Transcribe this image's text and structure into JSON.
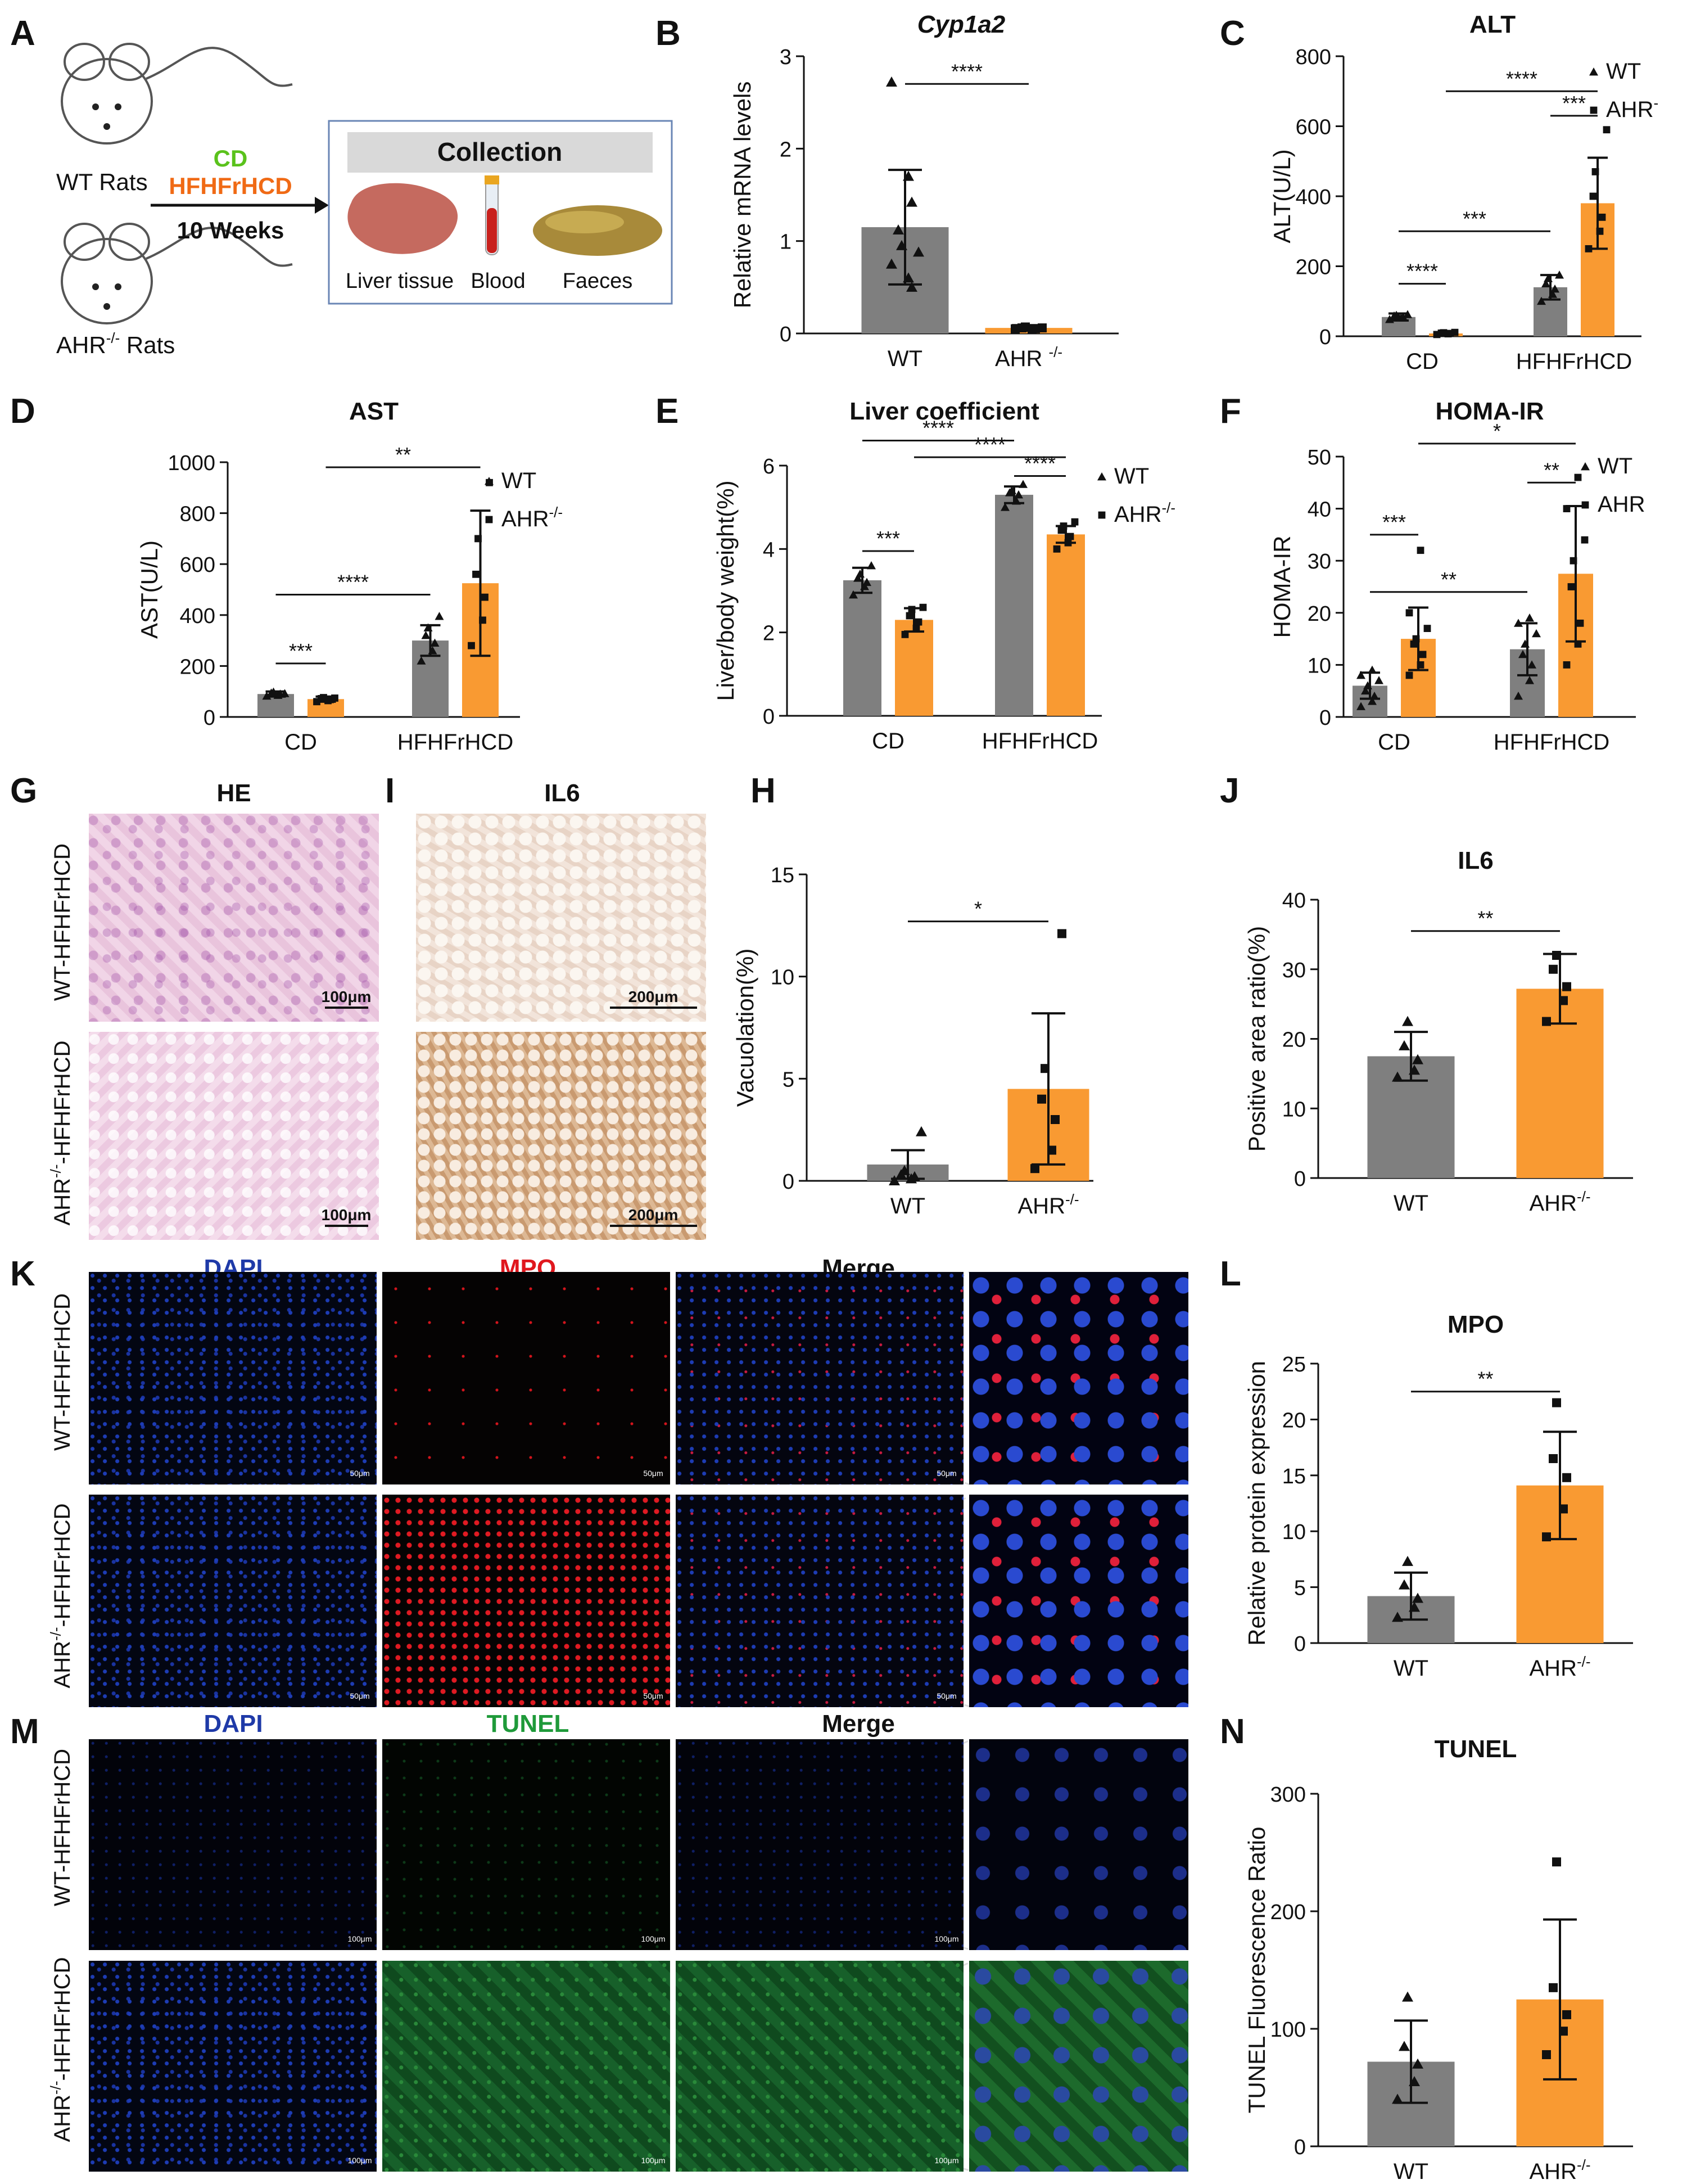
{
  "colors": {
    "wt": "#7f7f7f",
    "ahr": "#f99a32",
    "cd": "#5ac21c",
    "hfhfrhcd": "#f06a15"
  },
  "panel_letters": {
    "A": "A",
    "B": "B",
    "C": "C",
    "D": "D",
    "E": "E",
    "F": "F",
    "G": "G",
    "H": "H",
    "I": "I",
    "J": "J",
    "K": "K",
    "L": "L",
    "M": "M",
    "N": "N"
  },
  "panel_a": {
    "wt_rats": "WT Rats",
    "ahr_rats_base": "AHR",
    "ahr_rats_sup": "-/-",
    "ahr_rats_tail": " Rats",
    "diet_cd": "CD",
    "diet_hf": "HFHFrHCD",
    "duration": "10 Weeks",
    "collection_title": "Collection",
    "liver": "Liver tissue",
    "blood": "Blood",
    "faeces": "Faeces",
    "icons": [
      "rat-icon",
      "liver-icon",
      "blood-tube-icon",
      "faeces-icon"
    ]
  },
  "panel_g": {
    "title": "HE",
    "scale": "100μm",
    "row1": "WT-HFHFrHCD",
    "row2_base": "AHR",
    "row2_sup": "-/-",
    "row2_tail": "-HFHFrHCD"
  },
  "panel_i": {
    "title": "IL6",
    "scale": "200μm"
  },
  "panel_k": {
    "dapi": "DAPI",
    "mpo": "MPO",
    "merge": "Merge",
    "scale": "50μm",
    "row1": "WT-HFHFrHCD",
    "row2_base": "AHR",
    "row2_sup": "-/-",
    "row2_tail": "-HFHFrHCD"
  },
  "panel_m": {
    "dapi": "DAPI",
    "tunel": "TUNEL",
    "merge": "Merge",
    "scale": "100μm",
    "row1": "WT-HFHFrHCD",
    "row2_base": "AHR",
    "row2_sup": "-/-",
    "row2_tail": "-HFHFrHCD"
  },
  "chart_data": [
    {
      "panel": "B",
      "type": "bar",
      "title": "Cyp1a2",
      "title_italic": true,
      "ylabel": "Relative mRNA levels",
      "ylim": [
        0,
        3
      ],
      "yticks": [
        "0",
        "1",
        "2",
        "3"
      ],
      "categories": [
        {
          "base": "WT",
          "sup": ""
        },
        {
          "base": "AHR ",
          "sup": "-/-"
        }
      ],
      "values": [
        1.15,
        0.06
      ],
      "errors": [
        0.62,
        0.03
      ],
      "points": [
        [
          2.72,
          1.7,
          1.42,
          1.12,
          0.95,
          0.88,
          0.75,
          0.6,
          0.5
        ],
        [
          0.04,
          0.05,
          0.05,
          0.06,
          0.07,
          0.06,
          0.05,
          0.04
        ]
      ],
      "markers": [
        "triangle",
        "square"
      ],
      "significance": [
        {
          "from": 0,
          "to": 1,
          "y": 2.7,
          "label": "****"
        }
      ]
    },
    {
      "panel": "C",
      "type": "bar",
      "title": "ALT",
      "ylabel": "ALT(U/L)",
      "ylim": [
        0,
        800
      ],
      "yticks": [
        "0",
        "200",
        "400",
        "600",
        "800"
      ],
      "groups": [
        "CD",
        "HFHFrHCD"
      ],
      "series": [
        {
          "name_base": "WT",
          "name_sup": "",
          "values": [
            55,
            140
          ],
          "errors": [
            10,
            35
          ],
          "points": [
            [
              48,
              52,
              55,
              58,
              60,
              62
            ],
            [
              100,
              120,
              135,
              150,
              165,
              175
            ]
          ]
        },
        {
          "name_base": "AHR",
          "name_sup": "-",
          "values": [
            8,
            380
          ],
          "errors": [
            4,
            130
          ],
          "points": [
            [
              5,
              7,
              8,
              9,
              10,
              11
            ],
            [
              250,
              300,
              340,
              400,
              470,
              590
            ]
          ]
        }
      ],
      "markers": [
        "triangle",
        "square"
      ],
      "significance": [
        {
          "a": [
            0,
            0
          ],
          "b": [
            0,
            1
          ],
          "y": 150,
          "label": "****"
        },
        {
          "a": [
            0,
            0
          ],
          "b": [
            1,
            0
          ],
          "y": 300,
          "label": "***"
        },
        {
          "a": [
            1,
            0
          ],
          "b": [
            1,
            1
          ],
          "y": 630,
          "label": "***"
        },
        {
          "a": [
            0,
            1
          ],
          "b": [
            1,
            1
          ],
          "y": 700,
          "label": "****"
        }
      ]
    },
    {
      "panel": "D",
      "type": "bar",
      "title": "AST",
      "ylabel": "AST(U/L)",
      "ylim": [
        0,
        1000
      ],
      "yticks": [
        "0",
        "200",
        "400",
        "600",
        "800",
        "1000"
      ],
      "groups": [
        "CD",
        "HFHFrHCD"
      ],
      "series": [
        {
          "name_base": "WT",
          "name_sup": "",
          "values": [
            90,
            300
          ],
          "errors": [
            10,
            60
          ],
          "points": [
            [
              82,
              85,
              90,
              94,
              98,
              92
            ],
            [
              220,
              260,
              290,
              320,
              350,
              395
            ]
          ]
        },
        {
          "name_base": "AHR",
          "name_sup": "-/-",
          "values": [
            70,
            525
          ],
          "errors": [
            10,
            285
          ],
          "points": [
            [
              60,
              64,
              68,
              72,
              76,
              74
            ],
            [
              280,
              380,
              470,
              560,
              700,
              920
            ]
          ]
        }
      ],
      "markers": [
        "triangle",
        "square"
      ],
      "significance": [
        {
          "a": [
            0,
            0
          ],
          "b": [
            0,
            1
          ],
          "y": 210,
          "label": "***"
        },
        {
          "a": [
            0,
            0
          ],
          "b": [
            1,
            0
          ],
          "y": 480,
          "label": "****"
        },
        {
          "a": [
            0,
            1
          ],
          "b": [
            1,
            1
          ],
          "y": 980,
          "label": "**"
        }
      ]
    },
    {
      "panel": "E",
      "type": "bar",
      "title": "Liver coefficient",
      "ylabel": "Liver/body weight(%)",
      "ylim": [
        0,
        6
      ],
      "yticks": [
        "0",
        "2",
        "4",
        "6"
      ],
      "groups": [
        "CD",
        "HFHFrHCD"
      ],
      "series": [
        {
          "name_base": "WT",
          "name_sup": "",
          "values": [
            3.25,
            5.3
          ],
          "errors": [
            0.3,
            0.2
          ],
          "points": [
            [
              2.9,
              3.1,
              3.2,
              3.3,
              3.4,
              3.6
            ],
            [
              5.0,
              5.15,
              5.3,
              5.35,
              5.4,
              5.55
            ]
          ]
        },
        {
          "name_base": "AHR",
          "name_sup": "-/-",
          "values": [
            2.3,
            4.35
          ],
          "errors": [
            0.28,
            0.2
          ],
          "points": [
            [
              1.95,
              2.1,
              2.25,
              2.4,
              2.55,
              2.6
            ],
            [
              4.0,
              4.15,
              4.3,
              4.45,
              4.55,
              4.65
            ]
          ]
        }
      ],
      "markers": [
        "triangle",
        "square"
      ],
      "significance": [
        {
          "a": [
            0,
            0
          ],
          "b": [
            0,
            1
          ],
          "y": 3.95,
          "label": "***"
        },
        {
          "a": [
            0,
            0
          ],
          "b": [
            1,
            0
          ],
          "y": 6.6,
          "label": "****"
        },
        {
          "a": [
            0,
            1
          ],
          "b": [
            1,
            1
          ],
          "y": 6.2,
          "label": "****"
        },
        {
          "a": [
            1,
            0
          ],
          "b": [
            1,
            1
          ],
          "y": 5.75,
          "label": "****"
        }
      ]
    },
    {
      "panel": "F",
      "type": "bar",
      "title": "HOMA-IR",
      "ylabel": "HOMA-IR",
      "ylim": [
        0,
        50
      ],
      "yticks": [
        "0",
        "10",
        "20",
        "30",
        "40",
        "50"
      ],
      "groups": [
        "CD",
        "HFHFrHCD"
      ],
      "series": [
        {
          "name_base": "WT",
          "name_sup": "",
          "values": [
            6,
            13
          ],
          "errors": [
            2.5,
            5
          ],
          "points": [
            [
              2,
              3,
              4,
              5,
              6,
              7,
              8,
              9
            ],
            [
              4,
              7,
              10,
              12,
              14,
              16,
              18,
              19
            ]
          ]
        },
        {
          "name_base": "AHR",
          "name_sup": "",
          "values": [
            15,
            27.5
          ],
          "errors": [
            6,
            13
          ],
          "points": [
            [
              8,
              10,
              12,
              14,
              15,
              17,
              20,
              32
            ],
            [
              10,
              14,
              18,
              25,
              30,
              34,
              40,
              46
            ]
          ]
        }
      ],
      "markers": [
        "triangle",
        "square"
      ],
      "significance": [
        {
          "a": [
            0,
            0
          ],
          "b": [
            0,
            1
          ],
          "y": 35,
          "label": "***"
        },
        {
          "a": [
            0,
            0
          ],
          "b": [
            1,
            0
          ],
          "y": 24,
          "label": "**"
        },
        {
          "a": [
            1,
            0
          ],
          "b": [
            1,
            1
          ],
          "y": 45,
          "label": "**"
        },
        {
          "a": [
            0,
            1
          ],
          "b": [
            1,
            1
          ],
          "y": 52.5,
          "label": "*"
        }
      ]
    },
    {
      "panel": "H",
      "type": "bar",
      "title": "",
      "ylabel": "Vacuolation(%)",
      "ylim": [
        0,
        15
      ],
      "yticks": [
        "0",
        "5",
        "10",
        "15"
      ],
      "categories": [
        {
          "base": "WT",
          "sup": ""
        },
        {
          "base": "AHR",
          "sup": "-/-"
        }
      ],
      "values": [
        0.8,
        4.5
      ],
      "errors": [
        0.7,
        3.7
      ],
      "points": [
        [
          0,
          0.1,
          0.2,
          0.3,
          0.5,
          2.4
        ],
        [
          0.6,
          1.5,
          3.0,
          4.0,
          5.5,
          12.1
        ]
      ],
      "markers": [
        "triangle",
        "square"
      ],
      "significance": [
        {
          "from": 0,
          "to": 1,
          "y": 12.7,
          "label": "*"
        }
      ]
    },
    {
      "panel": "J",
      "type": "bar",
      "title": "IL6",
      "ylabel": "Positive area ratio(%)",
      "ylim": [
        0,
        40
      ],
      "yticks": [
        "0",
        "10",
        "20",
        "30",
        "40"
      ],
      "categories": [
        {
          "base": "WT",
          "sup": ""
        },
        {
          "base": "AHR",
          "sup": "-/-"
        }
      ],
      "values": [
        17.5,
        27.2
      ],
      "errors": [
        3.5,
        5
      ],
      "points": [
        [
          14.5,
          15.5,
          17,
          19,
          22.5
        ],
        [
          22.5,
          25.5,
          27.5,
          30,
          32
        ]
      ],
      "markers": [
        "triangle",
        "square"
      ],
      "significance": [
        {
          "from": 0,
          "to": 1,
          "y": 35.5,
          "label": "**"
        }
      ]
    },
    {
      "panel": "L",
      "type": "bar",
      "title": "MPO",
      "ylabel": "Relative protein expression",
      "ylim": [
        0,
        25
      ],
      "yticks": [
        "0",
        "5",
        "10",
        "15",
        "20",
        "25"
      ],
      "categories": [
        {
          "base": "WT",
          "sup": ""
        },
        {
          "base": "AHR",
          "sup": "-/-"
        }
      ],
      "values": [
        4.2,
        14.1
      ],
      "errors": [
        2.1,
        4.8
      ],
      "points": [
        [
          2.3,
          3.2,
          4.0,
          5.2,
          7.3
        ],
        [
          9.5,
          12.0,
          14.8,
          16.5,
          21.5
        ]
      ],
      "markers": [
        "triangle",
        "square"
      ],
      "significance": [
        {
          "from": 0,
          "to": 1,
          "y": 22.5,
          "label": "**"
        }
      ]
    },
    {
      "panel": "N",
      "type": "bar",
      "title": "TUNEL",
      "ylabel": "TUNEL Fluorescence Ratio",
      "ylim": [
        0,
        300
      ],
      "yticks": [
        "0",
        "100",
        "200",
        "300"
      ],
      "categories": [
        {
          "base": "WT",
          "sup": ""
        },
        {
          "base": "AHR",
          "sup": "-/-"
        }
      ],
      "values": [
        72,
        125
      ],
      "errors": [
        35,
        68
      ],
      "points": [
        [
          40,
          55,
          70,
          85,
          127
        ],
        [
          78,
          98,
          112,
          135,
          242
        ]
      ],
      "markers": [
        "triangle",
        "square"
      ],
      "significance": []
    }
  ]
}
